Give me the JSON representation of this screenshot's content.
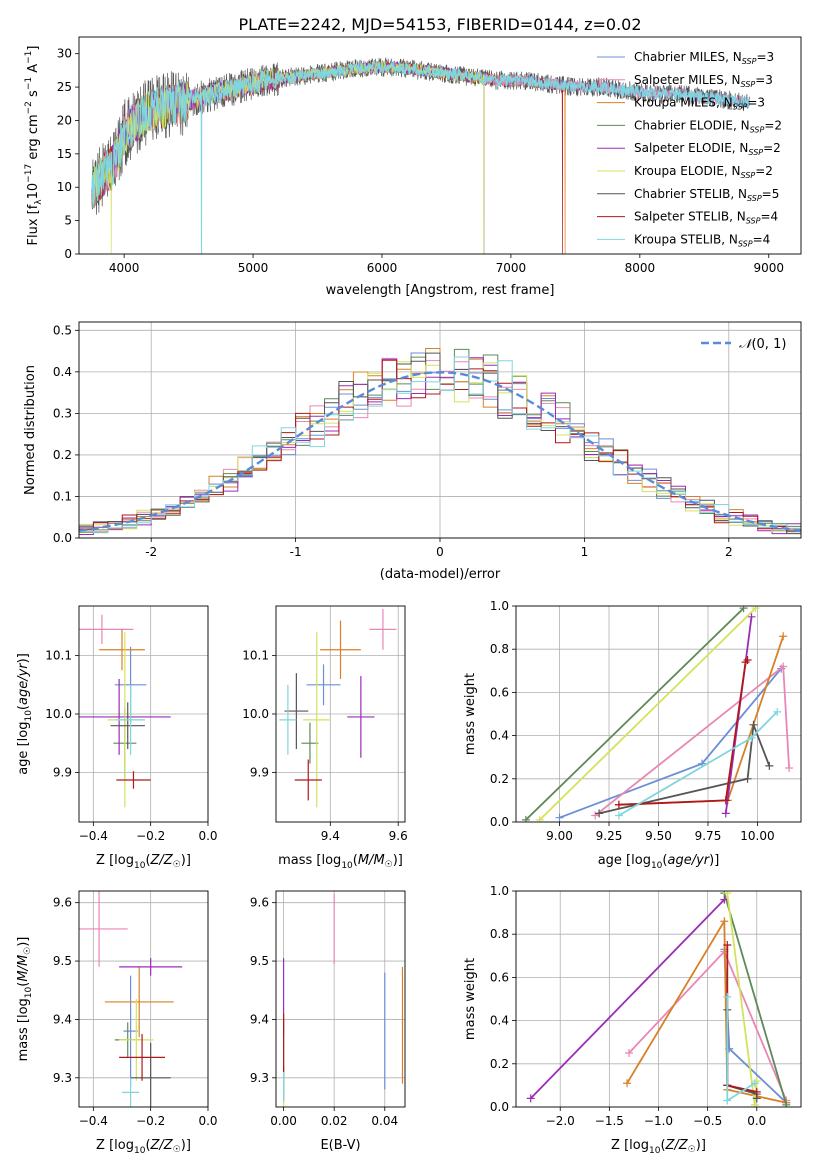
{
  "figure": {
    "title": "PLATE=2242, MJD=54153, FIBERID=0144, z=0.02"
  },
  "colors": {
    "Chabrier MILES": "#6b8fd6",
    "Salpeter MILES": "#ea86b5",
    "Kroupa MILES": "#d98026",
    "Chabrier ELODIE": "#5d8a57",
    "Salpeter ELODIE": "#9b2cb8",
    "Kroupa ELODIE": "#d5e25c",
    "Chabrier STELIB": "#555555",
    "Salpeter STELIB": "#b0191c",
    "Kroupa STELIB": "#7fd6de",
    "normal": "#5b8ad8"
  },
  "chart_data": [
    {
      "id": "spectrum",
      "type": "line",
      "title": "PLATE=2242, MJD=54153, FIBERID=0144, z=0.02",
      "xlabel": "wavelength [Angstrom, rest frame]",
      "ylabel": "Flux [f_λ 10^-17 erg cm^-2 s^-1 A^-1]",
      "xlim": [
        3650,
        9250
      ],
      "ylim": [
        0,
        32.5
      ],
      "xticks": [
        4000,
        5000,
        6000,
        7000,
        8000,
        9000
      ],
      "yticks": [
        0,
        5,
        10,
        15,
        20,
        25,
        30
      ],
      "grid": false,
      "legend_position": "top-right",
      "continuum": {
        "x": [
          3750,
          3800,
          3850,
          3900,
          3950,
          4000,
          4100,
          4200,
          4300,
          4400,
          4500,
          4700,
          4900,
          5100,
          5300,
          5500,
          5700,
          5900,
          6100,
          6300,
          6500,
          6700,
          6900,
          7100,
          7300,
          7500,
          7700,
          7900,
          8100,
          8300,
          8500,
          8700,
          8900
        ],
        "y": [
          9.5,
          11,
          12,
          13,
          15,
          18,
          20,
          21.5,
          22,
          22.5,
          23,
          24,
          25,
          26,
          26.5,
          27,
          27.5,
          28,
          28,
          27.5,
          27,
          26.5,
          26,
          26,
          25.5,
          25,
          25,
          24.5,
          24,
          24,
          23.5,
          23,
          22.5
        ]
      },
      "series": [
        {
          "name": "Chabrier MILES, N_SSP=3",
          "legend": {
            "base": "Chabrier MILES, N",
            "sub": "SSP",
            "suffix": "=3"
          },
          "xmax": 8850,
          "dips": []
        },
        {
          "name": "Salpeter MILES, N_SSP=3",
          "legend": {
            "base": "Salpeter MILES, N",
            "sub": "SSP",
            "suffix": "=3"
          },
          "xmax": 8850,
          "dips": []
        },
        {
          "name": "Kroupa MILES, N_SSP=3",
          "legend": {
            "base": "Kroupa MILES, N",
            "sub": "SSP",
            "suffix": "=3"
          },
          "xmax": 7420,
          "dips": [
            7420
          ]
        },
        {
          "name": "Chabrier ELODIE, N_SSP=2",
          "legend": {
            "base": "Chabrier ELODIE, N",
            "sub": "SSP",
            "suffix": "=2"
          },
          "xmax": 6790,
          "dips": [
            6790
          ]
        },
        {
          "name": "Salpeter ELODIE, N_SSP=2",
          "legend": {
            "base": "Salpeter ELODIE, N",
            "sub": "SSP",
            "suffix": "=2"
          },
          "xmax": 6790,
          "dips": [
            6790
          ]
        },
        {
          "name": "Kroupa ELODIE, N_SSP=2",
          "legend": {
            "base": "Kroupa ELODIE, N",
            "sub": "SSP",
            "suffix": "=2"
          },
          "xmax": 6790,
          "dips": [
            3900,
            6790
          ]
        },
        {
          "name": "Chabrier STELIB, N_SSP=5",
          "legend": {
            "base": "Chabrier STELIB, N",
            "sub": "SSP",
            "suffix": "=5"
          },
          "xmax": 8850,
          "dips": []
        },
        {
          "name": "Salpeter STELIB, N_SSP=4",
          "legend": {
            "base": "Salpeter STELIB, N",
            "sub": "SSP",
            "suffix": "=4"
          },
          "xmax": 7400,
          "dips": [
            7400
          ]
        },
        {
          "name": "Kroupa STELIB, N_SSP=4",
          "legend": {
            "base": "Kroupa STELIB, N",
            "sub": "SSP",
            "suffix": "=4"
          },
          "xmax": 8850,
          "dips": [
            4600
          ]
        }
      ]
    },
    {
      "id": "residuals",
      "type": "histogram",
      "xlabel": "(data-model)/error",
      "ylabel": "Normed distribution",
      "xlim": [
        -2.5,
        2.5
      ],
      "ylim": [
        0,
        0.52
      ],
      "xticks": [
        -2,
        -1,
        0,
        1,
        2
      ],
      "yticks": [
        0.0,
        0.1,
        0.2,
        0.3,
        0.4,
        0.5
      ],
      "grid": true,
      "legend_position": "top-right",
      "bin_edges": [
        -2.5,
        -2.4,
        -2.3,
        -2.2,
        -2.1,
        -2.0,
        -1.9,
        -1.8,
        -1.7,
        -1.6,
        -1.5,
        -1.4,
        -1.3,
        -1.2,
        -1.1,
        -1.0,
        -0.9,
        -0.8,
        -0.7,
        -0.6,
        -0.5,
        -0.4,
        -0.3,
        -0.2,
        -0.1,
        0.0,
        0.1,
        0.2,
        0.3,
        0.4,
        0.5,
        0.6,
        0.7,
        0.8,
        0.9,
        1.0,
        1.1,
        1.2,
        1.3,
        1.4,
        1.5,
        1.6,
        1.7,
        1.8,
        1.9,
        2.0,
        2.1,
        2.2,
        2.3,
        2.4,
        2.5
      ],
      "normal_curve": {
        "label": "N(0,1)",
        "label_symbol": "𝒩",
        "label_args": "(0, 1)",
        "mean": 0,
        "sigma": 1
      }
    },
    {
      "id": "age-vs-Z",
      "type": "errorbar",
      "xlabel": "Z [log10(Z/Z☉)]",
      "ylabel": "age [log10(age/yr)]",
      "xlim": [
        -0.45,
        0.0
      ],
      "ylim": [
        9.815,
        10.185
      ],
      "xticks": [
        -0.4,
        -0.2,
        0.0
      ],
      "xticklabels": [
        "−0.4",
        "−0.2",
        "0.0"
      ],
      "yticks": [
        9.9,
        10.0,
        10.1
      ],
      "grid": true,
      "points": [
        {
          "model": "Chabrier MILES",
          "x": -0.27,
          "xerr": 0.055,
          "y": 10.05,
          "yerr": 0.065
        },
        {
          "model": "Salpeter MILES",
          "x": -0.37,
          "xerr": 0.11,
          "y": 10.145,
          "yerr": 0.025
        },
        {
          "model": "Kroupa MILES",
          "x": -0.3,
          "xerr": 0.08,
          "y": 10.11,
          "yerr": 0.035
        },
        {
          "model": "Chabrier ELODIE",
          "x": -0.29,
          "xerr": 0.04,
          "y": 9.95,
          "yerr": 0.06
        },
        {
          "model": "Salpeter ELODIE",
          "x": -0.31,
          "xerr": 0.18,
          "y": 9.995,
          "yerr": 0.065
        },
        {
          "model": "Kroupa ELODIE",
          "x": -0.29,
          "xerr": 0.06,
          "y": 9.99,
          "yerr": 0.15
        },
        {
          "model": "Chabrier STELIB",
          "x": -0.28,
          "xerr": 0.06,
          "y": 9.98,
          "yerr": 0.04
        },
        {
          "model": "Salpeter STELIB",
          "x": -0.26,
          "xerr": 0.06,
          "y": 9.887,
          "yerr": 0.015
        },
        {
          "model": "Kroupa STELIB",
          "x": -0.27,
          "xerr": 0.05,
          "y": 9.99,
          "yerr": 0.06
        }
      ]
    },
    {
      "id": "age-vs-mass",
      "type": "errorbar",
      "xlabel": "mass [log10(M/M☉)]",
      "ylabel": "",
      "xlim": [
        9.24,
        9.62
      ],
      "ylim": [
        9.815,
        10.185
      ],
      "xticks": [
        9.4,
        9.6
      ],
      "xticklabels": [
        "9.4",
        "9.6"
      ],
      "yticks": [
        9.9,
        10.0,
        10.1
      ],
      "grid": true,
      "points": [
        {
          "model": "Chabrier MILES",
          "x": 9.38,
          "xerr": 0.05,
          "y": 10.05,
          "yerr": 0.035
        },
        {
          "model": "Salpeter MILES",
          "x": 9.555,
          "xerr": 0.04,
          "y": 10.145,
          "yerr": 0.035
        },
        {
          "model": "Kroupa MILES",
          "x": 9.43,
          "xerr": 0.06,
          "y": 10.11,
          "yerr": 0.05
        },
        {
          "model": "Chabrier ELODIE",
          "x": 9.34,
          "xerr": 0.025,
          "y": 9.95,
          "yerr": 0.035
        },
        {
          "model": "Salpeter ELODIE",
          "x": 9.49,
          "xerr": 0.04,
          "y": 9.995,
          "yerr": 0.07
        },
        {
          "model": "Kroupa ELODIE",
          "x": 9.36,
          "xerr": 0.04,
          "y": 9.99,
          "yerr": 0.15
        },
        {
          "model": "Chabrier STELIB",
          "x": 9.3,
          "xerr": 0.035,
          "y": 10.005,
          "yerr": 0.065
        },
        {
          "model": "Salpeter STELIB",
          "x": 9.335,
          "xerr": 0.04,
          "y": 9.887,
          "yerr": 0.035
        },
        {
          "model": "Kroupa STELIB",
          "x": 9.275,
          "xerr": 0.025,
          "y": 9.99,
          "yerr": 0.06
        }
      ]
    },
    {
      "id": "massweight-vs-age",
      "type": "line",
      "xlabel": "age [log10(age/yr)]",
      "ylabel": "mass weight",
      "xlim": [
        8.78,
        10.22
      ],
      "ylim": [
        0.0,
        1.0
      ],
      "xticks": [
        9.0,
        9.25,
        9.5,
        9.75,
        10.0
      ],
      "xticklabels": [
        "9.00",
        "9.25",
        "9.50",
        "9.75",
        "10.00"
      ],
      "yticks": [
        0.0,
        0.2,
        0.4,
        0.6,
        0.8,
        1.0
      ],
      "grid": true,
      "series": [
        {
          "model": "Chabrier MILES",
          "x": [
            9.0,
            9.72,
            10.12
          ],
          "y": [
            0.02,
            0.27,
            0.71
          ]
        },
        {
          "model": "Salpeter MILES",
          "x": [
            9.18,
            10.13,
            10.16
          ],
          "y": [
            0.03,
            0.72,
            0.25
          ]
        },
        {
          "model": "Kroupa MILES",
          "x": [
            9.3,
            9.85,
            10.13
          ],
          "y": [
            0.08,
            0.1,
            0.86
          ]
        },
        {
          "model": "Chabrier ELODIE",
          "x": [
            8.83,
            9.93
          ],
          "y": [
            0.01,
            0.99
          ]
        },
        {
          "model": "Salpeter ELODIE",
          "x": [
            9.84,
            9.97
          ],
          "y": [
            0.04,
            0.95
          ]
        },
        {
          "model": "Kroupa ELODIE",
          "x": [
            8.9,
            9.99
          ],
          "y": [
            0.01,
            0.99
          ]
        },
        {
          "model": "Chabrier STELIB",
          "x": [
            9.2,
            9.95,
            9.98,
            10.06
          ],
          "y": [
            0.04,
            0.2,
            0.45,
            0.26
          ]
        },
        {
          "model": "Salpeter STELIB",
          "x": [
            9.3,
            9.84,
            9.94,
            9.95
          ],
          "y": [
            0.08,
            0.1,
            0.74,
            0.75
          ]
        },
        {
          "model": "Kroupa STELIB",
          "x": [
            9.3,
            9.97,
            10.1
          ],
          "y": [
            0.03,
            0.39,
            0.51
          ]
        }
      ]
    },
    {
      "id": "mass-vs-Z",
      "type": "errorbar",
      "xlabel": "Z [log10(Z/Z☉)]",
      "ylabel": "mass [log10(M/M☉)]",
      "xlim": [
        -0.45,
        0.0
      ],
      "ylim": [
        9.25,
        9.62
      ],
      "xticks": [
        -0.4,
        -0.2,
        0.0
      ],
      "xticklabels": [
        "−0.4",
        "−0.2",
        "0.0"
      ],
      "yticks": [
        9.3,
        9.4,
        9.5,
        9.6
      ],
      "grid": true,
      "points": [
        {
          "model": "Chabrier MILES",
          "x": -0.27,
          "xerr": 0.025,
          "y": 9.38,
          "yerr": 0.095
        },
        {
          "model": "Salpeter MILES",
          "x": -0.38,
          "xerr": 0.1,
          "y": 9.555,
          "yerr": 0.065
        },
        {
          "model": "Kroupa MILES",
          "x": -0.24,
          "xerr": 0.12,
          "y": 9.43,
          "yerr": 0.06
        },
        {
          "model": "Chabrier ELODIE",
          "x": -0.28,
          "xerr": 0.045,
          "y": 9.365,
          "yerr": 0.03
        },
        {
          "model": "Salpeter ELODIE",
          "x": -0.2,
          "xerr": 0.11,
          "y": 9.49,
          "yerr": 0.015
        },
        {
          "model": "Kroupa ELODIE",
          "x": -0.25,
          "xerr": 0.06,
          "y": 9.365,
          "yerr": 0.07
        },
        {
          "model": "Chabrier STELIB",
          "x": -0.2,
          "xerr": 0.07,
          "y": 9.3,
          "yerr": 0.06
        },
        {
          "model": "Salpeter STELIB",
          "x": -0.23,
          "xerr": 0.08,
          "y": 9.335,
          "yerr": 0.04
        },
        {
          "model": "Kroupa STELIB",
          "x": -0.27,
          "xerr": 0.03,
          "y": 9.275,
          "yerr": 0.025
        }
      ]
    },
    {
      "id": "mass-vs-EBV",
      "type": "errorbar",
      "xlabel": "E(B-V)",
      "ylabel": "",
      "xlim": [
        -0.003,
        0.048
      ],
      "ylim": [
        9.25,
        9.62
      ],
      "xticks": [
        0.0,
        0.02,
        0.04
      ],
      "xticklabels": [
        "0.00",
        "0.02",
        "0.04"
      ],
      "yticks": [
        9.3,
        9.4,
        9.5,
        9.6
      ],
      "grid": true,
      "points": [
        {
          "model": "Chabrier MILES",
          "x": 0.04,
          "xerr": 0,
          "y": 9.38,
          "yerr": 0.1
        },
        {
          "model": "Salpeter MILES",
          "x": 0.02,
          "xerr": 0,
          "y": 9.555,
          "yerr": 0.06
        },
        {
          "model": "Kroupa MILES",
          "x": 0.047,
          "xerr": 0,
          "y": 9.39,
          "yerr": 0.1
        },
        {
          "model": "Chabrier ELODIE",
          "x": 0.0,
          "xerr": 0,
          "y": 9.35,
          "yerr": 0.05
        },
        {
          "model": "Salpeter ELODIE",
          "x": 0.0,
          "xerr": 0,
          "y": 9.44,
          "yerr": 0.065
        },
        {
          "model": "Kroupa ELODIE",
          "x": 0.0,
          "xerr": 0,
          "y": 9.3,
          "yerr": 0.05
        },
        {
          "model": "Chabrier STELIB",
          "x": 0.0,
          "xerr": 0,
          "y": 9.29,
          "yerr": 0.03
        },
        {
          "model": "Salpeter STELIB",
          "x": 0.0,
          "xerr": 0,
          "y": 9.36,
          "yerr": 0.05
        },
        {
          "model": "Kroupa STELIB",
          "x": 0.0,
          "xerr": 0,
          "y": 9.285,
          "yerr": 0.025
        }
      ]
    },
    {
      "id": "massweight-vs-Z",
      "type": "line",
      "xlabel": "Z [log10(Z/Z☉)]",
      "ylabel": "mass weight",
      "xlim": [
        -2.45,
        0.45
      ],
      "ylim": [
        0.0,
        1.0
      ],
      "xticks": [
        -2.0,
        -1.5,
        -1.0,
        -0.5,
        0.0
      ],
      "xticklabels": [
        "−2.0",
        "−1.5",
        "−1.0",
        "−0.5",
        "0.0"
      ],
      "yticks": [
        0.0,
        0.2,
        0.4,
        0.6,
        0.8,
        1.0
      ],
      "grid": true,
      "series": [
        {
          "model": "Chabrier MILES",
          "x": [
            -0.33,
            -0.28,
            0.3
          ],
          "y": [
            0.73,
            0.27,
            0.02
          ]
        },
        {
          "model": "Salpeter MILES",
          "x": [
            -1.3,
            -0.33,
            0.3
          ],
          "y": [
            0.25,
            0.72,
            0.03
          ]
        },
        {
          "model": "Kroupa MILES",
          "x": [
            -1.32,
            -0.33,
            -0.3,
            0.3
          ],
          "y": [
            0.11,
            0.86,
            0.08,
            0.02
          ]
        },
        {
          "model": "Chabrier ELODIE",
          "x": [
            -0.33,
            0.3
          ],
          "y": [
            0.99,
            0.01
          ]
        },
        {
          "model": "Salpeter ELODIE",
          "x": [
            -2.3,
            -0.33
          ],
          "y": [
            0.04,
            0.96
          ]
        },
        {
          "model": "Kroupa ELODIE",
          "x": [
            -0.3,
            -0.02,
            0.0
          ],
          "y": [
            0.99,
            0.01,
            0.12
          ]
        },
        {
          "model": "Chabrier STELIB",
          "x": [
            -0.3,
            -0.3,
            0.0,
            0.0
          ],
          "y": [
            0.45,
            0.1,
            0.06,
            0.04
          ]
        },
        {
          "model": "Salpeter STELIB",
          "x": [
            -0.3,
            -0.3,
            0.0
          ],
          "y": [
            0.75,
            0.1,
            0.07
          ]
        },
        {
          "model": "Kroupa STELIB",
          "x": [
            -0.3,
            -0.3,
            -0.02
          ],
          "y": [
            0.51,
            0.03,
            0.11
          ]
        }
      ]
    }
  ]
}
